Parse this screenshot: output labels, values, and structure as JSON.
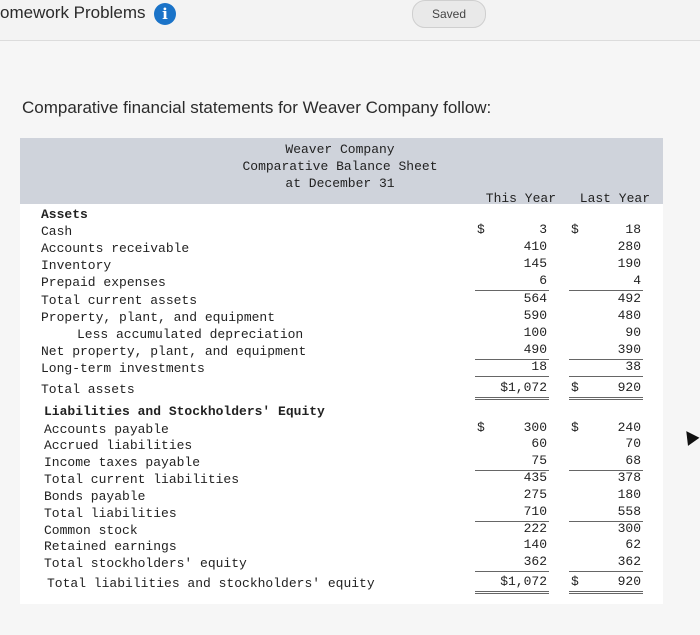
{
  "header": {
    "app_title": "omework Problems",
    "info_icon_glyph": "i",
    "saved_label": "Saved"
  },
  "instructions": "Comparative financial statements for Weaver Company follow:",
  "statement": {
    "company": "Weaver Company",
    "title": "Comparative Balance Sheet",
    "date": "at December 31",
    "col_this_year": "This Year",
    "col_last_year": "Last Year",
    "rows": [
      {
        "label": "Assets",
        "this": "",
        "last": "",
        "bold": true
      },
      {
        "label": "Cash",
        "this": "3",
        "last": "18",
        "cur_this": "$",
        "cur_last": "$"
      },
      {
        "label": "Accounts receivable",
        "this": "410",
        "last": "280"
      },
      {
        "label": "Inventory",
        "this": "145",
        "last": "190"
      },
      {
        "label": "Prepaid expenses",
        "this": "6",
        "last": "4"
      },
      {
        "label": "Total current assets",
        "this": "564",
        "last": "492"
      },
      {
        "label": "Property, plant, and equipment",
        "this": "590",
        "last": "480"
      },
      {
        "label": "Less accumulated depreciation",
        "this": "100",
        "last": "90"
      },
      {
        "label": "Net property, plant, and equipment",
        "this": "490",
        "last": "390"
      },
      {
        "label": "Long-term investments",
        "this": "18",
        "last": "38"
      },
      {
        "label": "Total assets",
        "this": "$1,072",
        "last": "920",
        "cur_last": "$"
      },
      {
        "label": "Liabilities and Stockholders' Equity",
        "this": "",
        "last": "",
        "bold": true
      },
      {
        "label": "Accounts payable",
        "this": "300",
        "last": "240",
        "cur_this": "$",
        "cur_last": "$"
      },
      {
        "label": "Accrued liabilities",
        "this": "60",
        "last": "70"
      },
      {
        "label": "Income taxes payable",
        "this": "75",
        "last": "68"
      },
      {
        "label": "Total current liabilities",
        "this": "435",
        "last": "378"
      },
      {
        "label": "Bonds payable",
        "this": "275",
        "last": "180"
      },
      {
        "label": "Total liabilities",
        "this": "710",
        "last": "558"
      },
      {
        "label": "Common stock",
        "this": "222",
        "last": "300"
      },
      {
        "label": "Retained earnings",
        "this": "140",
        "last": "62"
      },
      {
        "label": "Total stockholders' equity",
        "this": "362",
        "last": "362"
      },
      {
        "label": "Total liabilities and stockholders' equity",
        "this": "$1,072",
        "last": "920",
        "cur_last": "$"
      }
    ]
  }
}
